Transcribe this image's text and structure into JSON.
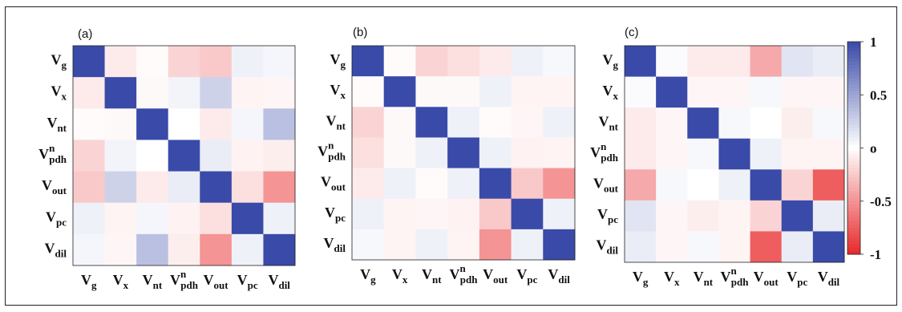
{
  "chart_data": [
    {
      "type": "heatmap",
      "panel_label": "(a)",
      "variables": [
        {
          "base": "V",
          "sub": "g",
          "sup": ""
        },
        {
          "base": "V",
          "sub": "x",
          "sup": ""
        },
        {
          "base": "V",
          "sub": "nt",
          "sup": ""
        },
        {
          "base": "V",
          "sub": "pdh",
          "sup": "n"
        },
        {
          "base": "V",
          "sub": "out",
          "sup": ""
        },
        {
          "base": "V",
          "sub": "pc",
          "sup": ""
        },
        {
          "base": "V",
          "sub": "dil",
          "sup": ""
        }
      ],
      "values": [
        [
          1.0,
          -0.1,
          -0.02,
          -0.2,
          -0.25,
          0.08,
          0.05
        ],
        [
          -0.1,
          1.0,
          -0.03,
          0.06,
          0.25,
          -0.05,
          -0.04
        ],
        [
          -0.02,
          -0.03,
          1.0,
          0.0,
          -0.1,
          0.05,
          0.35
        ],
        [
          -0.2,
          0.06,
          0.0,
          1.0,
          0.1,
          -0.06,
          -0.08
        ],
        [
          -0.25,
          0.25,
          -0.1,
          0.1,
          1.0,
          -0.15,
          -0.5
        ],
        [
          0.08,
          -0.05,
          0.05,
          -0.06,
          -0.15,
          1.0,
          0.08
        ],
        [
          0.05,
          -0.04,
          0.35,
          -0.08,
          -0.5,
          0.08,
          1.0
        ]
      ],
      "zlim": [
        -1,
        1
      ]
    },
    {
      "type": "heatmap",
      "panel_label": "(b)",
      "variables": [
        {
          "base": "V",
          "sub": "g",
          "sup": ""
        },
        {
          "base": "V",
          "sub": "x",
          "sup": ""
        },
        {
          "base": "V",
          "sub": "nt",
          "sup": ""
        },
        {
          "base": "V",
          "sub": "pdh",
          "sup": "n"
        },
        {
          "base": "V",
          "sub": "out",
          "sup": ""
        },
        {
          "base": "V",
          "sub": "pc",
          "sup": ""
        },
        {
          "base": "V",
          "sub": "dil",
          "sup": ""
        }
      ],
      "values": [
        [
          1.0,
          -0.02,
          -0.2,
          -0.15,
          -0.1,
          0.08,
          0.04
        ],
        [
          -0.02,
          1.0,
          -0.03,
          -0.03,
          0.08,
          -0.05,
          -0.05
        ],
        [
          -0.2,
          -0.03,
          1.0,
          0.08,
          -0.02,
          -0.04,
          0.08
        ],
        [
          -0.15,
          -0.03,
          0.08,
          1.0,
          0.08,
          -0.06,
          -0.05
        ],
        [
          -0.1,
          0.08,
          -0.02,
          0.08,
          1.0,
          -0.25,
          -0.5
        ],
        [
          0.08,
          -0.05,
          -0.04,
          -0.06,
          -0.25,
          1.0,
          0.08
        ],
        [
          0.04,
          -0.05,
          0.08,
          -0.05,
          -0.5,
          0.08,
          1.0
        ]
      ],
      "zlim": [
        -1,
        1
      ]
    },
    {
      "type": "heatmap",
      "panel_label": "(c)",
      "variables": [
        {
          "base": "V",
          "sub": "g",
          "sup": ""
        },
        {
          "base": "V",
          "sub": "x",
          "sup": ""
        },
        {
          "base": "V",
          "sub": "nt",
          "sup": ""
        },
        {
          "base": "V",
          "sub": "pdh",
          "sup": "n"
        },
        {
          "base": "V",
          "sub": "out",
          "sup": ""
        },
        {
          "base": "V",
          "sub": "pc",
          "sup": ""
        },
        {
          "base": "V",
          "sub": "dil",
          "sup": ""
        }
      ],
      "values": [
        [
          1.0,
          0.02,
          -0.1,
          -0.1,
          -0.4,
          0.15,
          0.1
        ],
        [
          0.02,
          1.0,
          -0.04,
          -0.04,
          0.04,
          -0.04,
          -0.04
        ],
        [
          -0.1,
          -0.04,
          1.0,
          0.04,
          0.0,
          -0.08,
          0.04
        ],
        [
          -0.1,
          -0.04,
          0.04,
          1.0,
          0.08,
          -0.05,
          -0.05
        ],
        [
          -0.4,
          0.04,
          0.0,
          0.08,
          1.0,
          -0.2,
          -0.75
        ],
        [
          0.15,
          -0.04,
          -0.08,
          -0.05,
          -0.2,
          1.0,
          0.1
        ],
        [
          0.1,
          -0.04,
          0.04,
          -0.05,
          -0.75,
          0.1,
          1.0
        ]
      ],
      "zlim": [
        -1,
        1
      ]
    }
  ],
  "colorbar": {
    "ticks": [
      {
        "value": 1,
        "label": "1"
      },
      {
        "value": 0.5,
        "label": "0.5"
      },
      {
        "value": 0,
        "label": "o"
      },
      {
        "value": -0.5,
        "label": "-0.5"
      },
      {
        "value": -1,
        "label": "-1"
      }
    ],
    "colors": {
      "positive": "#3a4aa8",
      "zero": "#ffffff",
      "negative": "#e8282a"
    }
  }
}
